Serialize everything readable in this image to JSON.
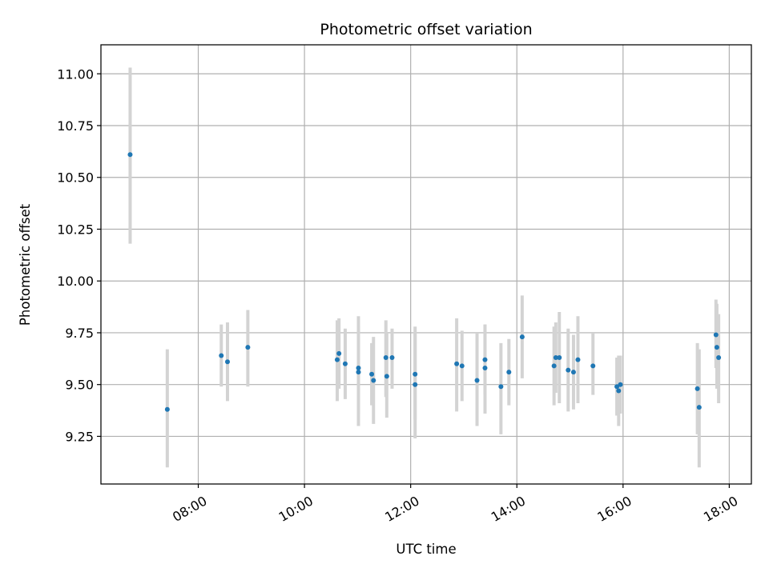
{
  "chart_data": {
    "type": "scatter",
    "title": "Photometric offset variation",
    "xlabel": "UTC time",
    "ylabel": "Photometric offset",
    "xlim": [
      "06:10",
      "18:25"
    ],
    "ylim": [
      9.02,
      11.14
    ],
    "xticks": [
      "08:00",
      "10:00",
      "12:00",
      "14:00",
      "16:00",
      "18:00"
    ],
    "yticks": [
      "9.25",
      "9.50",
      "9.75",
      "10.00",
      "10.25",
      "10.50",
      "10.75",
      "11.00"
    ],
    "grid": true,
    "colors": {
      "point": "#1f77b4",
      "errorbar": "#d3d3d3",
      "grid": "#b0b0b0"
    },
    "series": [
      {
        "points": [
          {
            "x": "06:43",
            "y": 10.61,
            "lo": 10.18,
            "hi": 11.03
          },
          {
            "x": "07:25",
            "y": 9.38,
            "lo": 9.1,
            "hi": 9.67
          },
          {
            "x": "08:26",
            "y": 9.64,
            "lo": 9.49,
            "hi": 9.79
          },
          {
            "x": "08:33",
            "y": 9.61,
            "lo": 9.42,
            "hi": 9.8
          },
          {
            "x": "08:56",
            "y": 9.68,
            "lo": 9.49,
            "hi": 9.86
          },
          {
            "x": "10:37",
            "y": 9.62,
            "lo": 9.42,
            "hi": 9.81
          },
          {
            "x": "10:39",
            "y": 9.65,
            "lo": 9.48,
            "hi": 9.82
          },
          {
            "x": "10:46",
            "y": 9.6,
            "lo": 9.43,
            "hi": 9.77
          },
          {
            "x": "11:01",
            "y": 9.58,
            "lo": 9.3,
            "hi": 9.83
          },
          {
            "x": "11:01",
            "y": 9.56,
            "lo": 9.36,
            "hi": 9.78
          },
          {
            "x": "11:16",
            "y": 9.55,
            "lo": 9.4,
            "hi": 9.7
          },
          {
            "x": "11:18",
            "y": 9.52,
            "lo": 9.31,
            "hi": 9.73
          },
          {
            "x": "11:32",
            "y": 9.63,
            "lo": 9.44,
            "hi": 9.81
          },
          {
            "x": "11:33",
            "y": 9.54,
            "lo": 9.34,
            "hi": 9.75
          },
          {
            "x": "11:39",
            "y": 9.63,
            "lo": 9.48,
            "hi": 9.77
          },
          {
            "x": "12:05",
            "y": 9.55,
            "lo": 9.33,
            "hi": 9.78
          },
          {
            "x": "12:05",
            "y": 9.5,
            "lo": 9.24,
            "hi": 9.75
          },
          {
            "x": "12:52",
            "y": 9.6,
            "lo": 9.37,
            "hi": 9.82
          },
          {
            "x": "12:58",
            "y": 9.59,
            "lo": 9.42,
            "hi": 9.76
          },
          {
            "x": "13:15",
            "y": 9.52,
            "lo": 9.3,
            "hi": 9.75
          },
          {
            "x": "13:24",
            "y": 9.62,
            "lo": 9.45,
            "hi": 9.79
          },
          {
            "x": "13:24",
            "y": 9.58,
            "lo": 9.36,
            "hi": 9.79
          },
          {
            "x": "13:42",
            "y": 9.49,
            "lo": 9.26,
            "hi": 9.7
          },
          {
            "x": "13:51",
            "y": 9.56,
            "lo": 9.4,
            "hi": 9.72
          },
          {
            "x": "14:06",
            "y": 9.73,
            "lo": 9.53,
            "hi": 9.93
          },
          {
            "x": "14:42",
            "y": 9.59,
            "lo": 9.4,
            "hi": 9.78
          },
          {
            "x": "14:44",
            "y": 9.63,
            "lo": 9.46,
            "hi": 9.8
          },
          {
            "x": "14:48",
            "y": 9.63,
            "lo": 9.41,
            "hi": 9.85
          },
          {
            "x": "14:58",
            "y": 9.57,
            "lo": 9.37,
            "hi": 9.77
          },
          {
            "x": "15:04",
            "y": 9.56,
            "lo": 9.38,
            "hi": 9.74
          },
          {
            "x": "15:09",
            "y": 9.62,
            "lo": 9.41,
            "hi": 9.83
          },
          {
            "x": "15:26",
            "y": 9.59,
            "lo": 9.45,
            "hi": 9.75
          },
          {
            "x": "15:53",
            "y": 9.49,
            "lo": 9.35,
            "hi": 9.63
          },
          {
            "x": "15:55",
            "y": 9.47,
            "lo": 9.3,
            "hi": 9.64
          },
          {
            "x": "15:57",
            "y": 9.5,
            "lo": 9.36,
            "hi": 9.64
          },
          {
            "x": "17:24",
            "y": 9.48,
            "lo": 9.26,
            "hi": 9.7
          },
          {
            "x": "17:26",
            "y": 9.39,
            "lo": 9.1,
            "hi": 9.67
          },
          {
            "x": "17:45",
            "y": 9.74,
            "lo": 9.58,
            "hi": 9.91
          },
          {
            "x": "17:46",
            "y": 9.68,
            "lo": 9.48,
            "hi": 9.89
          },
          {
            "x": "17:48",
            "y": 9.63,
            "lo": 9.41,
            "hi": 9.84
          }
        ]
      }
    ]
  }
}
